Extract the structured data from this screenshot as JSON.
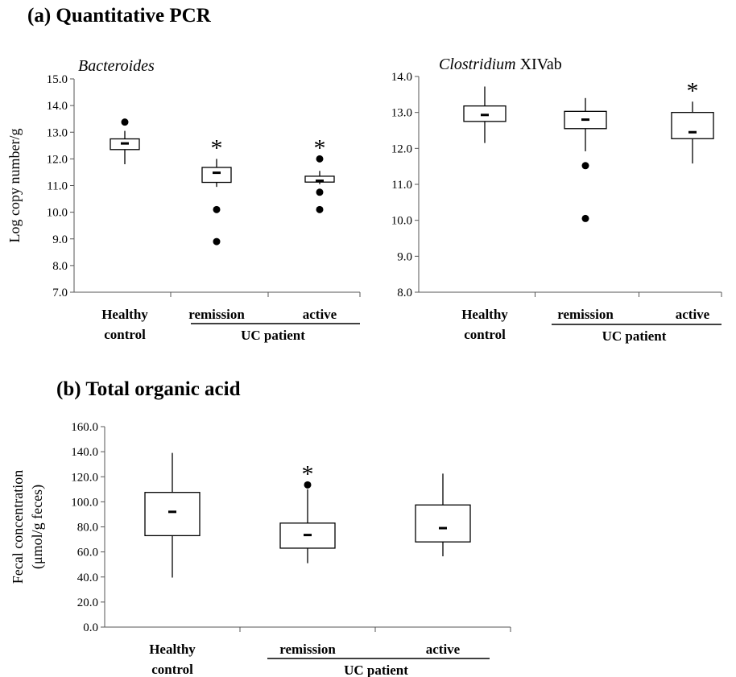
{
  "panels": {
    "a_title": "(a) Quantitative PCR",
    "b_title": "(b) Total organic acid"
  },
  "chart_data": [
    {
      "id": "bacteroides",
      "type": "box",
      "title_italic": "Bacteroides",
      "title_rest": "",
      "ylabel_lines": [
        "Log copy number/g"
      ],
      "ylim": [
        7.0,
        15.0
      ],
      "yticks": [
        "7.0",
        "8.0",
        "9.0",
        "10.0",
        "11.0",
        "12.0",
        "13.0",
        "14.0",
        "15.0"
      ],
      "categories": [
        {
          "lines": [
            "Healthy",
            "control"
          ]
        },
        {
          "lines": [
            "remission"
          ]
        },
        {
          "lines": [
            "active"
          ]
        }
      ],
      "group_label": "UC patient",
      "boxes": [
        {
          "q1": 12.35,
          "median": 12.58,
          "q3": 12.75,
          "whisker_low": 11.8,
          "whisker_high": 13.05,
          "outliers": [
            13.38
          ],
          "significant": false
        },
        {
          "q1": 11.12,
          "median": 11.48,
          "q3": 11.68,
          "whisker_low": 10.95,
          "whisker_high": 12.0,
          "outliers": [
            10.1,
            8.9
          ],
          "significant": true
        },
        {
          "q1": 11.13,
          "median": 11.18,
          "q3": 11.35,
          "whisker_low": 11.05,
          "whisker_high": 11.55,
          "outliers": [
            12.0,
            10.75,
            10.1
          ],
          "significant": true
        }
      ],
      "star": "*"
    },
    {
      "id": "clostridium",
      "type": "box",
      "title_italic": "Clostridium",
      "title_rest": " XIVab",
      "ylabel_lines": [],
      "ylim": [
        8.0,
        14.0
      ],
      "yticks": [
        "8.0",
        "9.0",
        "10.0",
        "11.0",
        "12.0",
        "13.0",
        "14.0"
      ],
      "categories": [
        {
          "lines": [
            "Healthy",
            "control"
          ]
        },
        {
          "lines": [
            "remission"
          ]
        },
        {
          "lines": [
            "active"
          ]
        }
      ],
      "group_label": "UC patient",
      "boxes": [
        {
          "q1": 12.75,
          "median": 12.93,
          "q3": 13.18,
          "whisker_low": 12.15,
          "whisker_high": 13.72,
          "outliers": [],
          "significant": false
        },
        {
          "q1": 12.55,
          "median": 12.8,
          "q3": 13.03,
          "whisker_low": 11.92,
          "whisker_high": 13.4,
          "outliers": [
            11.52,
            10.05
          ],
          "significant": false
        },
        {
          "q1": 12.27,
          "median": 12.45,
          "q3": 13.0,
          "whisker_low": 11.58,
          "whisker_high": 13.3,
          "outliers": [],
          "significant": true
        }
      ],
      "star": "*"
    },
    {
      "id": "organic_acid",
      "type": "box",
      "title_italic": "",
      "title_rest": "",
      "ylabel_lines": [
        "Fecal concentration",
        "(μmol/g feces)"
      ],
      "ylim": [
        0.0,
        160.0
      ],
      "yticks": [
        "0.0",
        "20.0",
        "40.0",
        "60.0",
        "80.0",
        "100.0",
        "120.0",
        "140.0",
        "160.0"
      ],
      "categories": [
        {
          "lines": [
            "Healthy",
            "control"
          ]
        },
        {
          "lines": [
            "remission"
          ]
        },
        {
          "lines": [
            "active"
          ]
        }
      ],
      "group_label": "UC patient",
      "boxes": [
        {
          "q1": 73.0,
          "median": 92.0,
          "q3": 107.5,
          "whisker_low": 39.5,
          "whisker_high": 139.0,
          "outliers": [],
          "significant": false
        },
        {
          "q1": 63.0,
          "median": 73.5,
          "q3": 83.0,
          "whisker_low": 51.0,
          "whisker_high": 110.0,
          "outliers": [
            113.5
          ],
          "significant": true
        },
        {
          "q1": 68.0,
          "median": 79.0,
          "q3": 97.5,
          "whisker_low": 56.5,
          "whisker_high": 122.5,
          "outliers": [],
          "significant": false
        }
      ],
      "star": "*"
    }
  ]
}
